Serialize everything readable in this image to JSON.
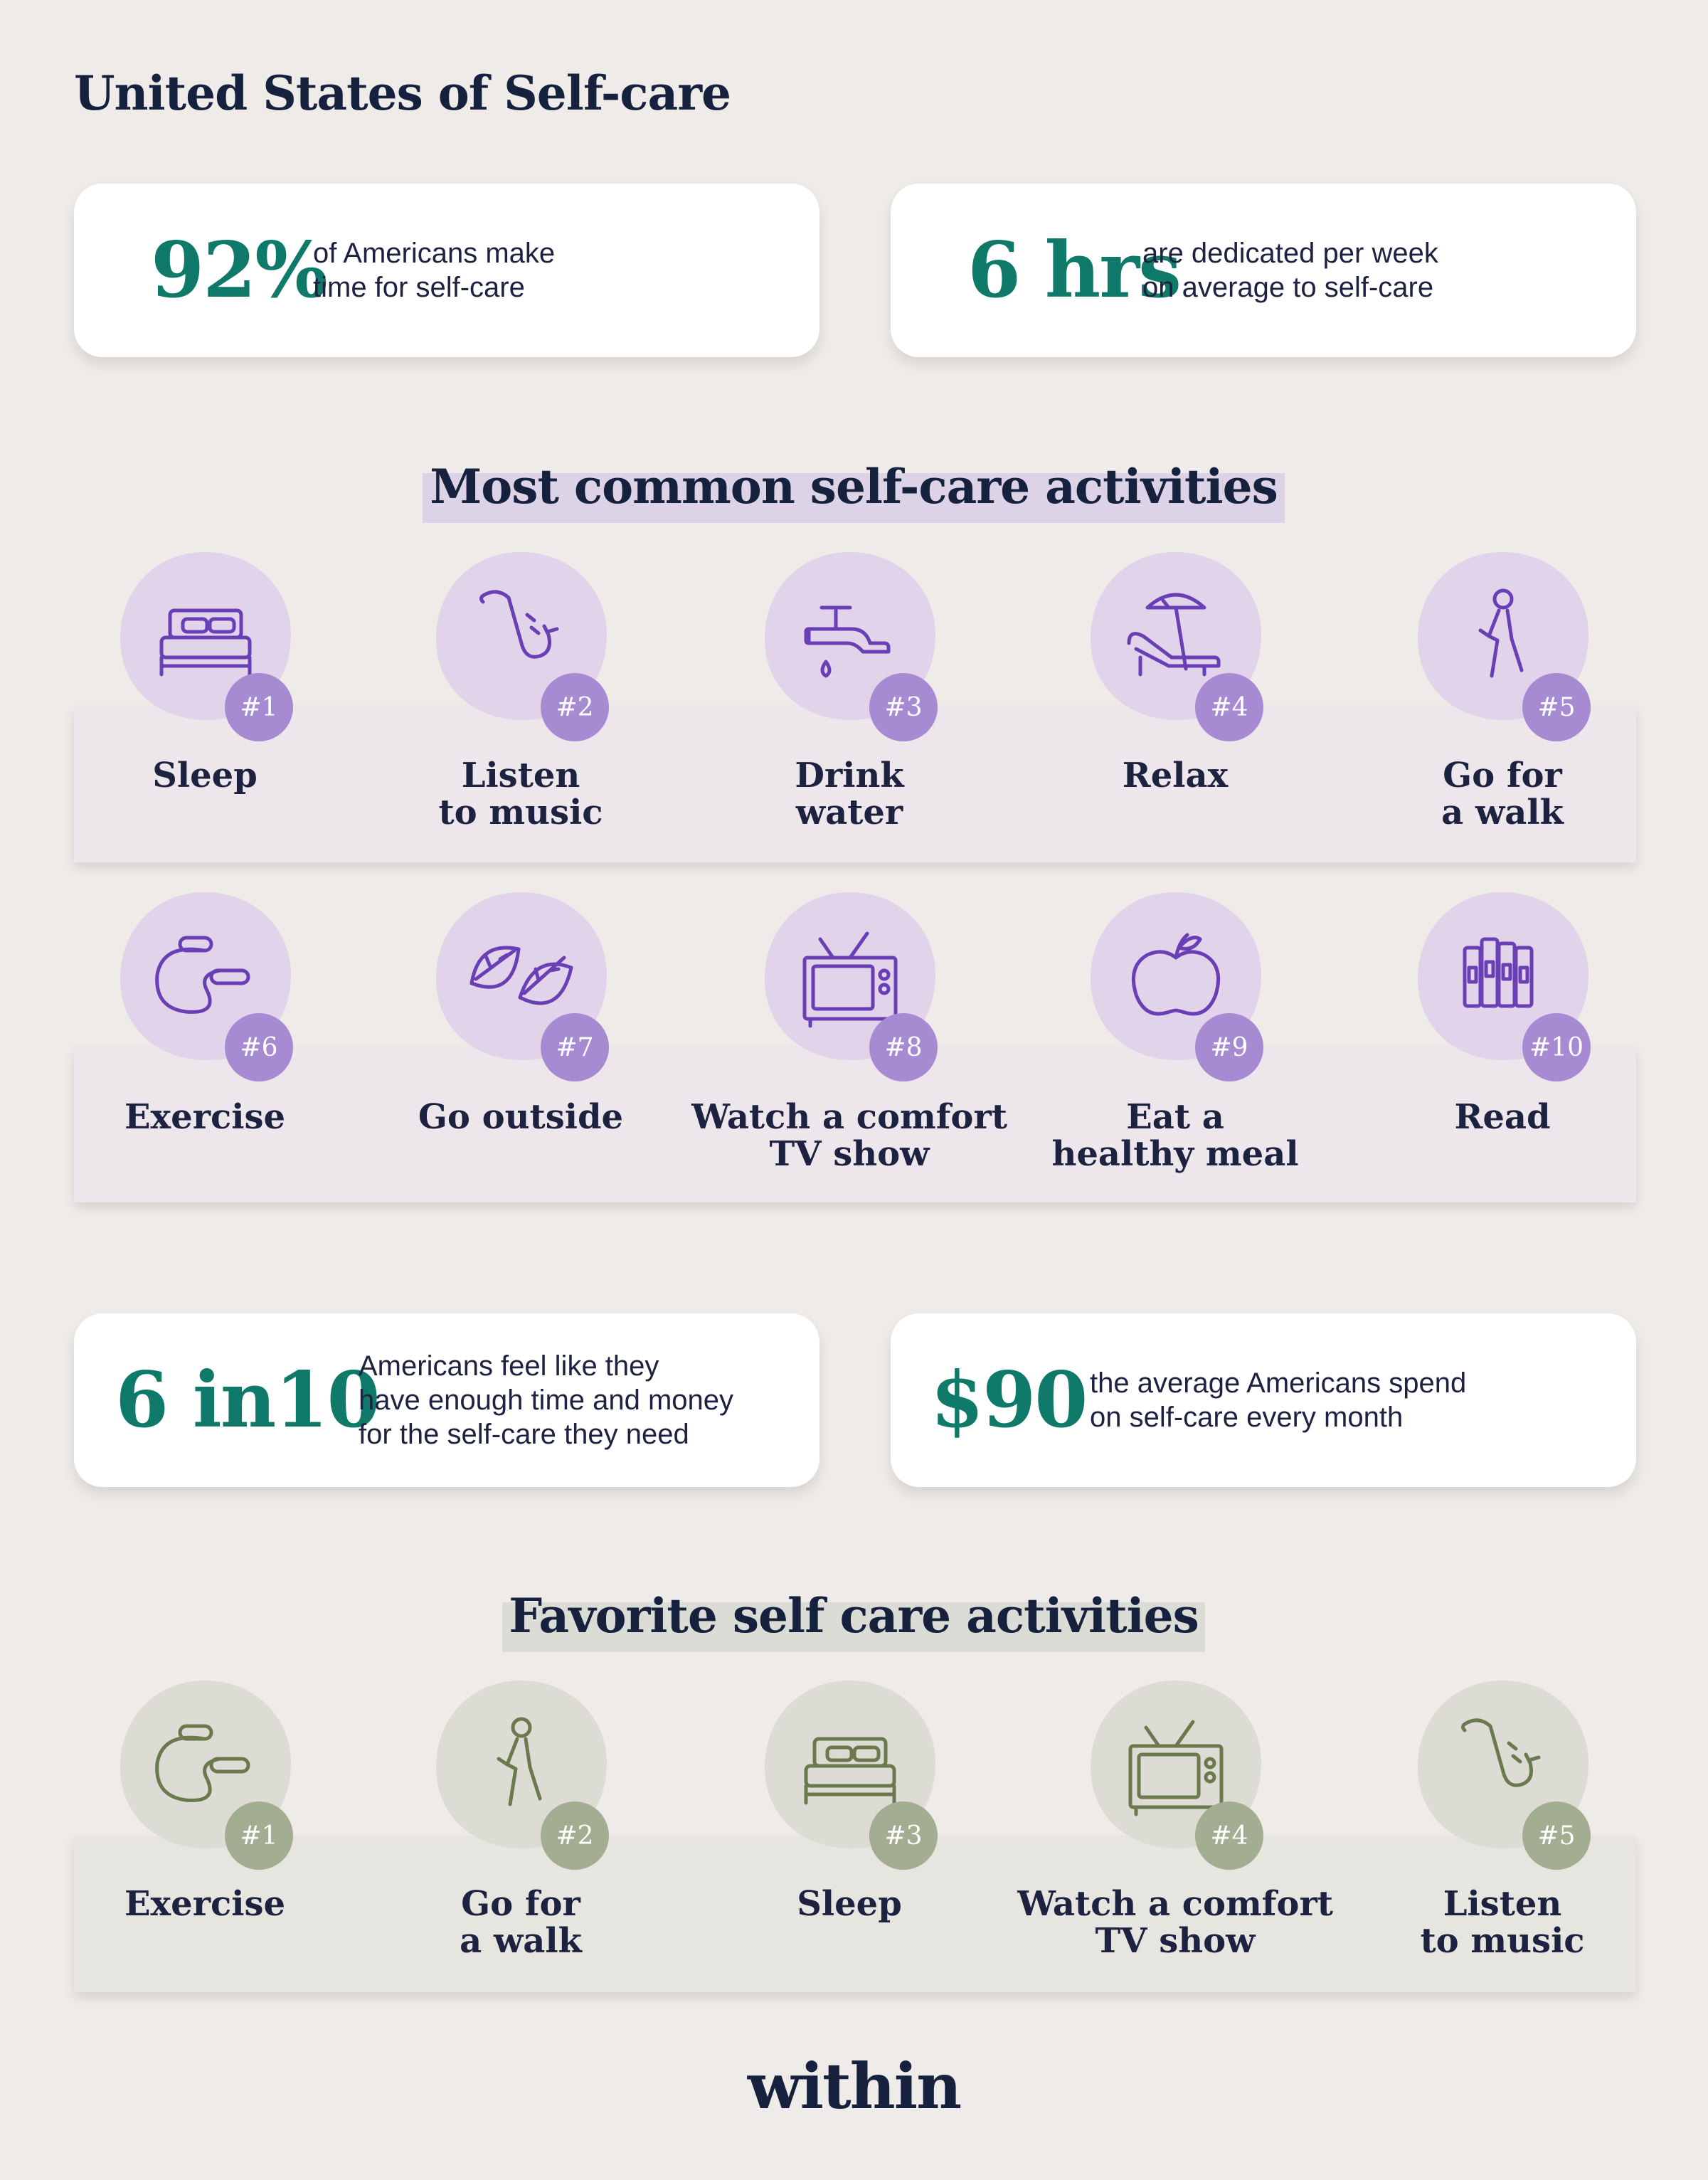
{
  "title": "United States of Self-care",
  "stats_top": [
    {
      "value": "92%",
      "text_line1": "of Americans make",
      "text_line2": "time for self-care"
    },
    {
      "value": "6 hrs",
      "text_line1": "are dedicated per week",
      "text_line2": "on average to self-care"
    }
  ],
  "most_common": {
    "heading": "Most common self-care activities",
    "row1": [
      {
        "rank": "#1",
        "label": "Sleep",
        "icon": "bed-icon"
      },
      {
        "rank": "#2",
        "label": "Listen\nto music",
        "icon": "saxophone-icon"
      },
      {
        "rank": "#3",
        "label": "Drink\nwater",
        "icon": "faucet-icon"
      },
      {
        "rank": "#4",
        "label": "Relax",
        "icon": "beach-chair-icon"
      },
      {
        "rank": "#5",
        "label": "Go for\na walk",
        "icon": "walking-person-icon"
      }
    ],
    "row2": [
      {
        "rank": "#6",
        "label": "Exercise",
        "icon": "jump-rope-icon"
      },
      {
        "rank": "#7",
        "label": "Go outside",
        "icon": "leaves-icon"
      },
      {
        "rank": "#8",
        "label": "Watch a comfort\nTV show",
        "icon": "tv-icon"
      },
      {
        "rank": "#9",
        "label": "Eat a\nhealthy meal",
        "icon": "apple-icon"
      },
      {
        "rank": "#10",
        "label": "Read",
        "icon": "books-icon"
      }
    ]
  },
  "stats_bottom": [
    {
      "value": "6 in10",
      "text_line1": "Americans feel like they",
      "text_line2": "have enough time and money",
      "text_line3": "for the self-care they need"
    },
    {
      "value": "$90",
      "text_line1": "the average Americans spend",
      "text_line2": "on self-care every month"
    }
  ],
  "favorite": {
    "heading": "Favorite self care activities",
    "row": [
      {
        "rank": "#1",
        "label": "Exercise",
        "icon": "jump-rope-icon"
      },
      {
        "rank": "#2",
        "label": "Go for\na walk",
        "icon": "walking-person-icon"
      },
      {
        "rank": "#3",
        "label": "Sleep",
        "icon": "bed-icon"
      },
      {
        "rank": "#4",
        "label": "Watch a comfort\nTV show",
        "icon": "tv-icon"
      },
      {
        "rank": "#5",
        "label": "Listen\nto music",
        "icon": "saxophone-icon"
      }
    ]
  },
  "logo": "within",
  "colors": {
    "accent_teal": "#0f7a6a",
    "purple_badge": "#a78bd2",
    "purple_blob": "#e0d3ea",
    "purple_icon": "#6a3fb5",
    "green_badge": "#a3ad91",
    "green_blob": "#dcdcd4",
    "green_icon": "#6b7a4e",
    "background": "#efebe8"
  }
}
